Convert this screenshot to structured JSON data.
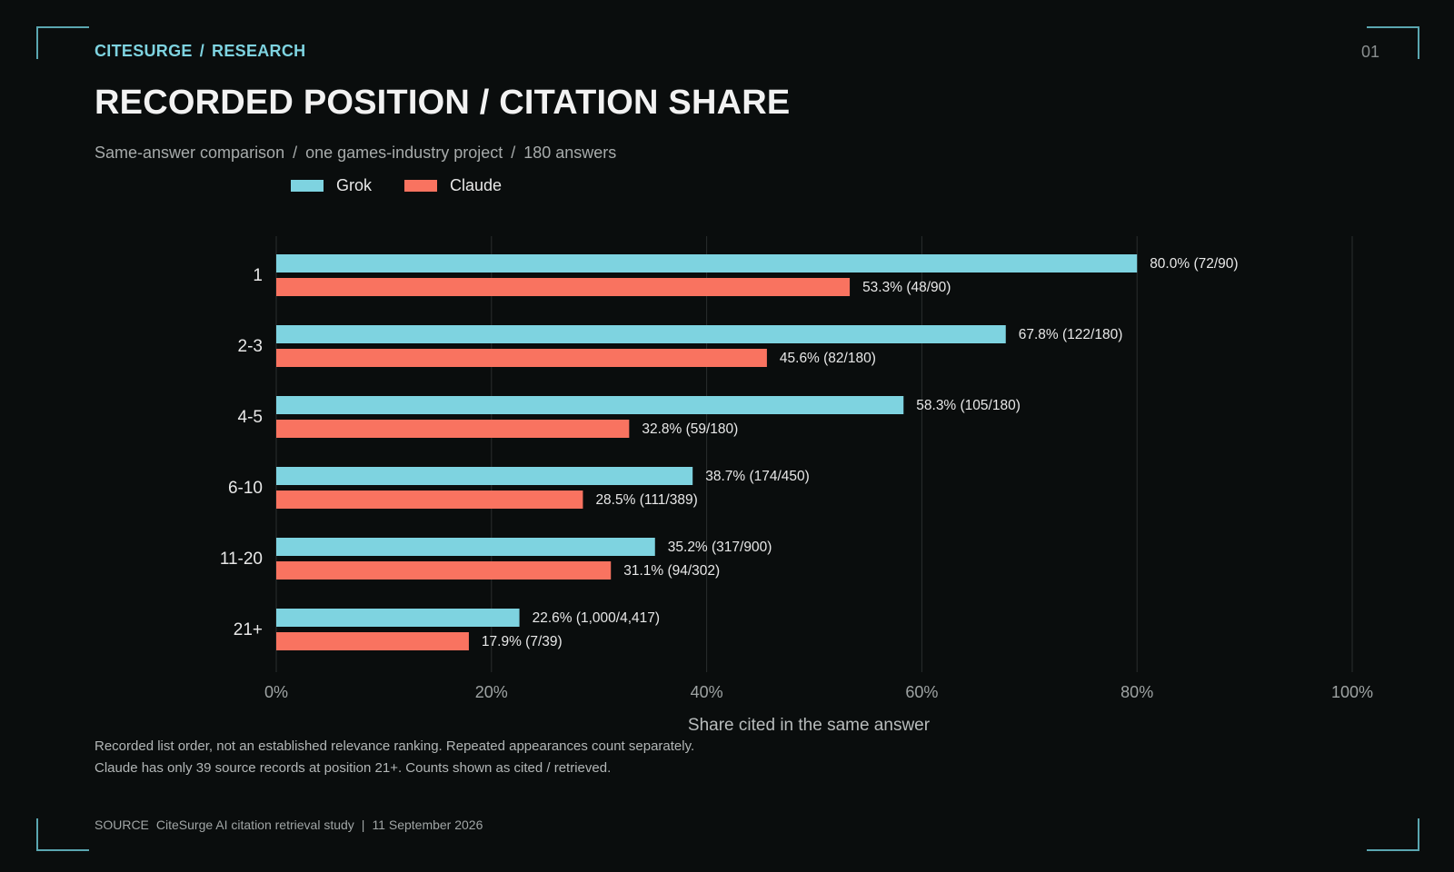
{
  "header": {
    "brand": "CITESURGE",
    "section": "RESEARCH",
    "page_number": "01"
  },
  "title": "RECORDED POSITION / CITATION SHARE",
  "subtitle": {
    "parts": [
      "Same-answer comparison",
      "one games-industry project",
      "180 answers"
    ]
  },
  "colors": {
    "grok": "#7ed3e0",
    "claude": "#f97360",
    "accent": "#7ed3e0",
    "background": "#0a0d0d"
  },
  "chart_data": {
    "type": "bar",
    "orientation": "horizontal",
    "categories": [
      "1",
      "2-3",
      "4-5",
      "6-10",
      "11-20",
      "21+"
    ],
    "series": [
      {
        "name": "Grok",
        "values": [
          80.0,
          67.8,
          58.3,
          38.7,
          35.2,
          22.6
        ],
        "labels": [
          "80.0%  (72/90)",
          "67.8%  (122/180)",
          "58.3%  (105/180)",
          "38.7%  (174/450)",
          "35.2%  (317/900)",
          "22.6%  (1,000/4,417)"
        ]
      },
      {
        "name": "Claude",
        "values": [
          53.3,
          45.6,
          32.8,
          28.5,
          31.1,
          17.9
        ],
        "labels": [
          "53.3%  (48/90)",
          "45.6%  (82/180)",
          "32.8%  (59/180)",
          "28.5%  (111/389)",
          "31.1%  (94/302)",
          "17.9%  (7/39)"
        ]
      }
    ],
    "xlim": [
      0,
      100
    ],
    "xticks": [
      "0%",
      "20%",
      "40%",
      "60%",
      "80%",
      "100%"
    ],
    "xlabel": "Share cited in the same answer",
    "ylabel": "",
    "grid": true,
    "legend": "top-left"
  },
  "notes": [
    "Recorded list order, not an established relevance ranking. Repeated appearances count separately.",
    "Claude has only 39 source records at position 21+. Counts shown as cited / retrieved."
  ],
  "source": {
    "label": "SOURCE",
    "text": "CiteSurge AI citation retrieval study",
    "date": "11 September 2026"
  }
}
